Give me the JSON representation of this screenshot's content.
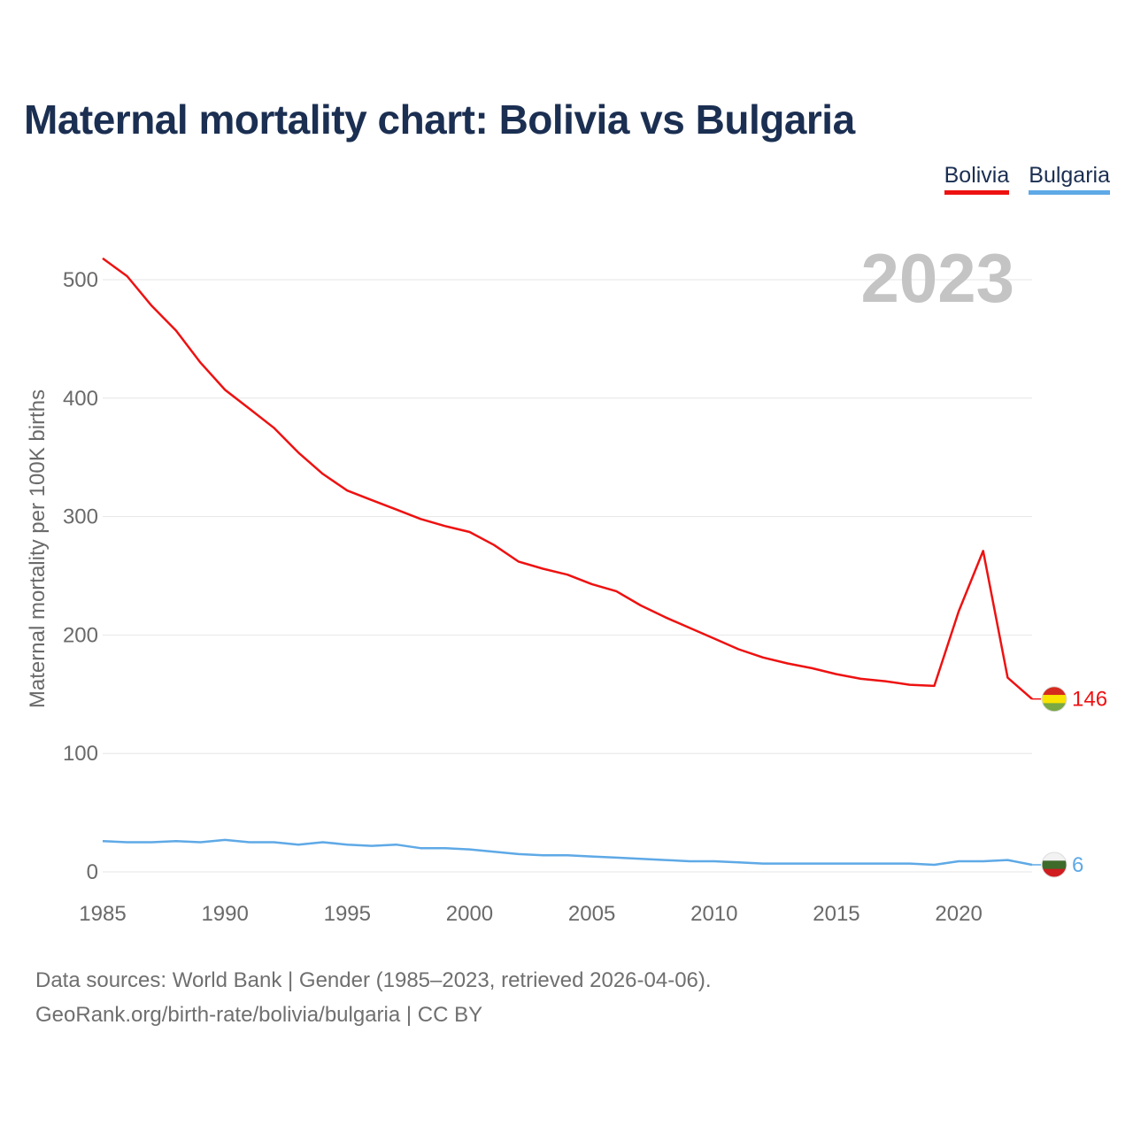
{
  "title": "Maternal mortality chart: Bolivia vs Bulgaria",
  "legend": [
    {
      "label": "Bolivia",
      "color": "#ee1111"
    },
    {
      "label": "Bulgaria",
      "color": "#5ea9e6"
    }
  ],
  "footer": {
    "line1": "Data sources: World Bank | Gender (1985–2023, retrieved 2026-04-06).",
    "line2": "GeoRank.org/birth-rate/bolivia/bulgaria | CC BY"
  },
  "chart_data": {
    "type": "line",
    "title": "Maternal mortality chart: Bolivia vs Bulgaria",
    "xlabel": "",
    "ylabel": "Maternal mortality per 100K births",
    "year_watermark": "2023",
    "x": [
      1985,
      1986,
      1987,
      1988,
      1989,
      1990,
      1991,
      1992,
      1993,
      1994,
      1995,
      1996,
      1997,
      1998,
      1999,
      2000,
      2001,
      2002,
      2003,
      2004,
      2005,
      2006,
      2007,
      2008,
      2009,
      2010,
      2011,
      2012,
      2013,
      2014,
      2015,
      2016,
      2017,
      2018,
      2019,
      2020,
      2021,
      2022,
      2023
    ],
    "xlim": [
      1985,
      2023
    ],
    "ylim": [
      0,
      500
    ],
    "xticks": [
      1985,
      1990,
      1995,
      2000,
      2005,
      2010,
      2015,
      2020
    ],
    "yticks": [
      0,
      100,
      200,
      300,
      400,
      500
    ],
    "grid": true,
    "legend_position": "top-right",
    "series": [
      {
        "name": "Bolivia",
        "color": "#ee1111",
        "end_label": "146",
        "values": [
          518,
          503,
          478,
          457,
          430,
          407,
          391,
          375,
          354,
          336,
          322,
          314,
          306,
          298,
          292,
          287,
          276,
          262,
          256,
          251,
          243,
          237,
          225,
          215,
          206,
          197,
          188,
          181,
          176,
          172,
          167,
          163,
          161,
          158,
          157,
          220,
          271,
          164,
          146
        ]
      },
      {
        "name": "Bulgaria",
        "color": "#5ea9e6",
        "end_label": "6",
        "values": [
          26,
          25,
          25,
          26,
          25,
          27,
          25,
          25,
          23,
          25,
          23,
          22,
          23,
          20,
          20,
          19,
          17,
          15,
          14,
          14,
          13,
          12,
          11,
          10,
          9,
          9,
          8,
          7,
          7,
          7,
          7,
          7,
          7,
          7,
          6,
          9,
          9,
          10,
          6
        ]
      }
    ]
  }
}
